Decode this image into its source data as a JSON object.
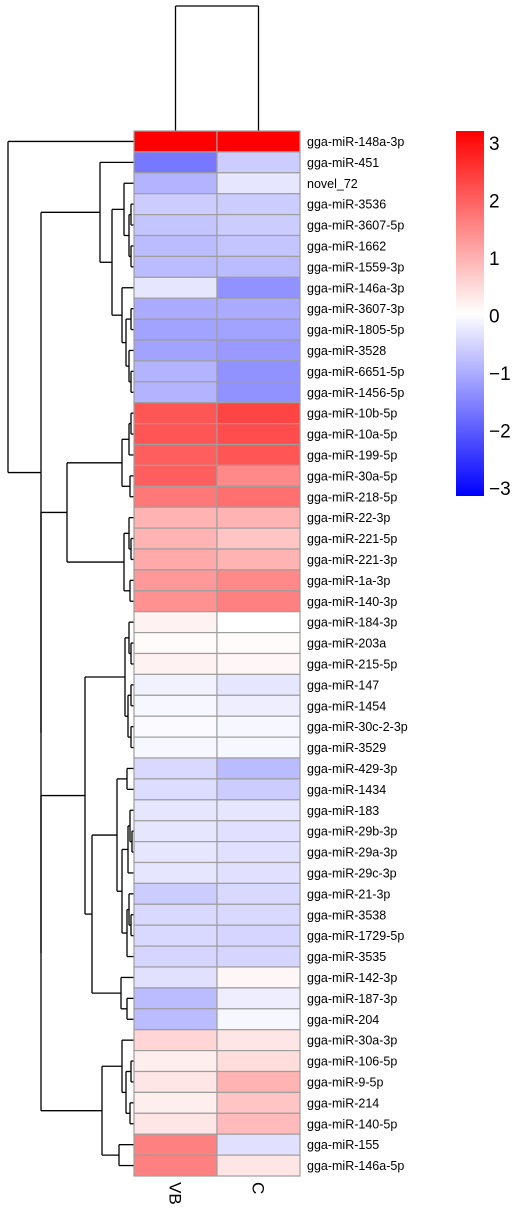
{
  "chart_data": {
    "type": "heatmap",
    "title": "",
    "columns": [
      "VB",
      "C"
    ],
    "rows": [
      "gga-miR-148a-3p",
      "gga-miR-451",
      "novel_72",
      "gga-miR-3536",
      "gga-miR-3607-5p",
      "gga-miR-1662",
      "gga-miR-1559-3p",
      "gga-miR-146a-3p",
      "gga-miR-3607-3p",
      "gga-miR-1805-5p",
      "gga-miR-3528",
      "gga-miR-6651-5p",
      "gga-miR-1456-5p",
      "gga-miR-10b-5p",
      "gga-miR-10a-5p",
      "gga-miR-199-5p",
      "gga-miR-30a-5p",
      "gga-miR-218-5p",
      "gga-miR-22-3p",
      "gga-miR-221-5p",
      "gga-miR-221-3p",
      "gga-miR-1a-3p",
      "gga-miR-140-3p",
      "gga-miR-184-3p",
      "gga-miR-203a",
      "gga-miR-215-5p",
      "gga-miR-147",
      "gga-miR-1454",
      "gga-miR-30c-2-3p",
      "gga-miR-3529",
      "gga-miR-429-3p",
      "gga-miR-1434",
      "gga-miR-183",
      "gga-miR-29b-3p",
      "gga-miR-29a-3p",
      "gga-miR-29c-3p",
      "gga-miR-21-3p",
      "gga-miR-3538",
      "gga-miR-1729-5p",
      "gga-miR-3535",
      "gga-miR-142-3p",
      "gga-miR-187-3p",
      "gga-miR-204",
      "gga-miR-30a-3p",
      "gga-miR-106-5p",
      "gga-miR-9-5p",
      "gga-miR-214",
      "gga-miR-140-5p",
      "gga-miR-155",
      "gga-miR-146a-5p"
    ],
    "values": [
      [
        3.2,
        3.2
      ],
      [
        -1.6,
        -0.6
      ],
      [
        -0.9,
        -0.3
      ],
      [
        -0.6,
        -0.6
      ],
      [
        -0.7,
        -0.6
      ],
      [
        -0.8,
        -0.7
      ],
      [
        -0.8,
        -0.8
      ],
      [
        -0.3,
        -1.3
      ],
      [
        -1.0,
        -1.0
      ],
      [
        -1.1,
        -1.1
      ],
      [
        -1.1,
        -1.2
      ],
      [
        -0.9,
        -1.3
      ],
      [
        -0.9,
        -1.3
      ],
      [
        2.0,
        2.2
      ],
      [
        2.0,
        2.1
      ],
      [
        1.9,
        2.0
      ],
      [
        1.9,
        1.4
      ],
      [
        1.6,
        1.7
      ],
      [
        0.9,
        0.9
      ],
      [
        0.9,
        0.7
      ],
      [
        1.0,
        0.9
      ],
      [
        1.2,
        1.4
      ],
      [
        1.3,
        1.5
      ],
      [
        0.15,
        0.0
      ],
      [
        0.05,
        0.05
      ],
      [
        0.15,
        0.1
      ],
      [
        -0.15,
        -0.3
      ],
      [
        -0.1,
        -0.2
      ],
      [
        -0.05,
        -0.1
      ],
      [
        -0.1,
        -0.1
      ],
      [
        -0.45,
        -0.8
      ],
      [
        -0.4,
        -0.6
      ],
      [
        -0.3,
        -0.3
      ],
      [
        -0.3,
        -0.35
      ],
      [
        -0.3,
        -0.35
      ],
      [
        -0.3,
        -0.35
      ],
      [
        -0.6,
        -0.45
      ],
      [
        -0.45,
        -0.45
      ],
      [
        -0.45,
        -0.5
      ],
      [
        -0.5,
        -0.5
      ],
      [
        -0.35,
        0.1
      ],
      [
        -0.8,
        -0.2
      ],
      [
        -0.8,
        -0.1
      ],
      [
        0.5,
        0.3
      ],
      [
        0.2,
        0.4
      ],
      [
        0.3,
        0.9
      ],
      [
        0.2,
        0.7
      ],
      [
        0.3,
        0.8
      ],
      [
        1.5,
        -0.35
      ],
      [
        1.5,
        0.3
      ]
    ],
    "colorscale": {
      "low": "#0000ff",
      "mid": "#ffffff",
      "high": "#ff0000",
      "range": [
        -3,
        3
      ]
    },
    "legend": {
      "ticks": [
        3,
        2,
        1,
        0,
        -1,
        -2,
        -3
      ],
      "tick_labels": [
        "3",
        "2",
        "1",
        "0",
        "−1",
        "−2",
        "−3"
      ],
      "placement": "top-right"
    }
  }
}
